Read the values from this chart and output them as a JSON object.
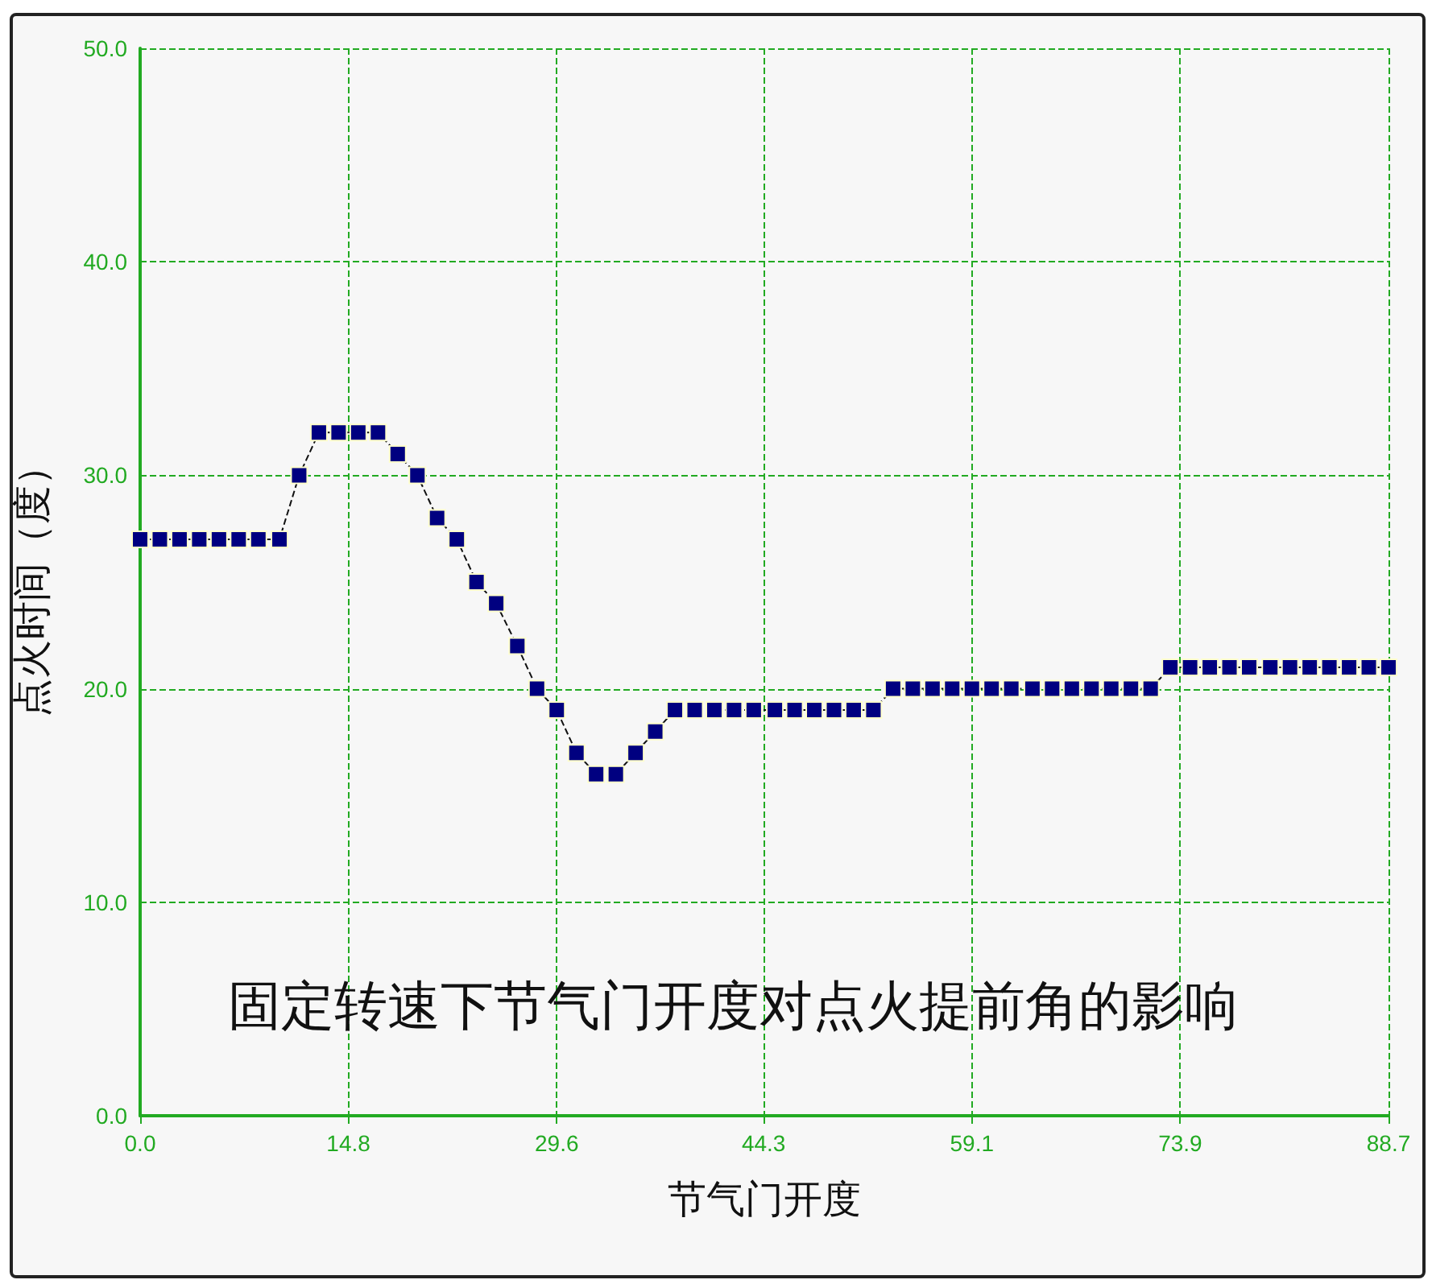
{
  "chart_data": {
    "type": "line",
    "title": "固定转速下节气门开度对点火提前角的影响",
    "xlabel": "节气门开度",
    "ylabel": "点火时间（度）",
    "x": [
      0.0,
      1.4,
      2.8,
      4.2,
      5.6,
      7.0,
      8.4,
      9.9,
      11.3,
      12.7,
      14.1,
      15.5,
      16.9,
      18.3,
      19.7,
      21.1,
      22.5,
      23.9,
      25.3,
      26.8,
      28.2,
      29.6,
      31.0,
      32.4,
      33.8,
      35.2,
      36.6,
      38.0,
      39.4,
      40.8,
      42.2,
      43.6,
      45.1,
      46.5,
      47.9,
      49.3,
      50.7,
      52.1,
      53.5,
      54.9,
      56.3,
      57.7,
      59.1,
      60.5,
      61.9,
      63.4,
      64.8,
      66.2,
      67.6,
      69.0,
      70.4,
      71.8,
      73.2,
      74.6,
      76.0,
      77.4,
      78.8,
      80.3,
      81.7,
      83.1,
      84.5,
      85.9,
      87.3,
      88.7
    ],
    "series": [
      {
        "color": "#000080",
        "values": [
          27,
          27,
          27,
          27,
          27,
          27,
          27,
          27,
          30,
          32,
          32,
          32,
          32,
          31,
          30,
          28,
          27,
          25,
          24,
          22,
          20,
          19,
          17,
          16,
          16,
          17,
          18,
          19,
          19,
          19,
          19,
          19,
          19,
          19,
          19,
          19,
          19,
          19,
          20,
          20,
          20,
          20,
          20,
          20,
          20,
          20,
          20,
          20,
          20,
          20,
          20,
          20,
          21,
          21,
          21,
          21,
          21,
          21,
          21,
          21,
          21,
          21,
          21,
          21
        ]
      }
    ],
    "xlim": [
      0,
      88.7
    ],
    "ylim": [
      0,
      50
    ],
    "xticks": [
      {
        "value": 0,
        "label": "0.0"
      },
      14.8,
      29.6,
      44.3,
      59.1,
      73.9,
      88.7
    ],
    "yticks": [
      {
        "value": 0,
        "label": "0.0"
      },
      {
        "value": 10,
        "label": "10.0"
      },
      {
        "value": 20,
        "label": "20.0"
      },
      {
        "value": 30,
        "label": "30.0"
      },
      {
        "value": 40,
        "label": "40.0"
      },
      {
        "value": 50,
        "label": "50.0"
      }
    ],
    "grid": true,
    "marker": "square",
    "line_style": "dashed"
  }
}
